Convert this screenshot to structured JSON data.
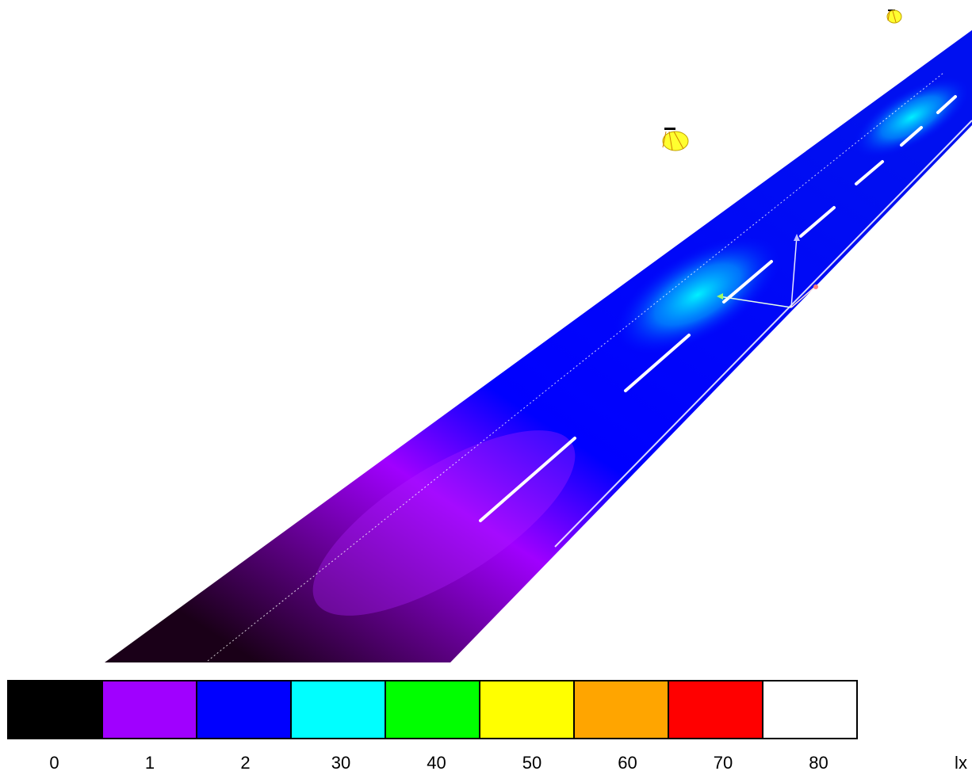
{
  "legend": {
    "unit": "lx",
    "items": [
      {
        "label": "0",
        "color": "#000000"
      },
      {
        "label": "1",
        "color": "#a000ff"
      },
      {
        "label": "2",
        "color": "#0000ff"
      },
      {
        "label": "30",
        "color": "#00ffff"
      },
      {
        "label": "40",
        "color": "#00ff00"
      },
      {
        "label": "50",
        "color": "#ffff00"
      },
      {
        "label": "60",
        "color": "#ffa500"
      },
      {
        "label": "70",
        "color": "#ff0000"
      },
      {
        "label": "80",
        "color": "#ffffff"
      }
    ]
  },
  "scene": {
    "road_colors": {
      "far": "#0010f0",
      "mid": "#0000ff",
      "near_purple": "#a000ff",
      "near_dark": "#1a0018"
    },
    "hotspot_color": "#00e8ff",
    "luminaire_color": "#ffff30"
  }
}
